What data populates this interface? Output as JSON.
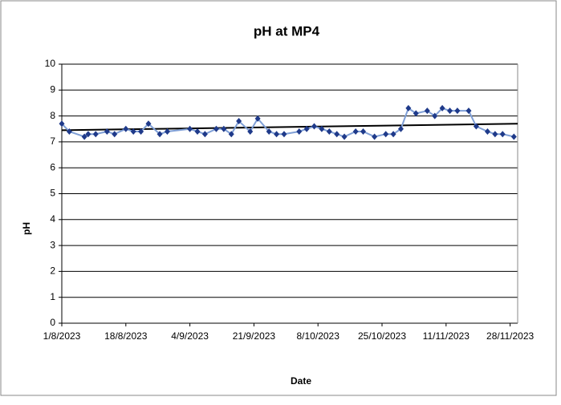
{
  "chart_data": {
    "type": "line",
    "title": "pH at MP4",
    "x_label": "Date",
    "y_label": "pH",
    "x": [
      "2023-08-01",
      "2023-08-03",
      "2023-08-07",
      "2023-08-08",
      "2023-08-10",
      "2023-08-13",
      "2023-08-15",
      "2023-08-18",
      "2023-08-20",
      "2023-08-22",
      "2023-08-24",
      "2023-08-27",
      "2023-08-29",
      "2023-09-04",
      "2023-09-06",
      "2023-09-08",
      "2023-09-11",
      "2023-09-13",
      "2023-09-15",
      "2023-09-17",
      "2023-09-20",
      "2023-09-22",
      "2023-09-25",
      "2023-09-27",
      "2023-09-29",
      "2023-10-03",
      "2023-10-05",
      "2023-10-07",
      "2023-10-09",
      "2023-10-11",
      "2023-10-13",
      "2023-10-15",
      "2023-10-18",
      "2023-10-20",
      "2023-10-23",
      "2023-10-26",
      "2023-10-28",
      "2023-10-30",
      "2023-11-01",
      "2023-11-03",
      "2023-11-06",
      "2023-11-08",
      "2023-11-10",
      "2023-11-12",
      "2023-11-14",
      "2023-11-17",
      "2023-11-19",
      "2023-11-22",
      "2023-11-24",
      "2023-11-26",
      "2023-11-29"
    ],
    "series": [
      {
        "color": "#7f9fd6",
        "marker_color": "#1f3a8a",
        "values": [
          7.7,
          7.4,
          7.2,
          7.3,
          7.3,
          7.4,
          7.3,
          7.5,
          7.4,
          7.4,
          7.7,
          7.3,
          7.4,
          7.5,
          7.4,
          7.3,
          7.5,
          7.5,
          7.3,
          7.8,
          7.4,
          7.9,
          7.4,
          7.3,
          7.3,
          7.4,
          7.5,
          7.6,
          7.5,
          7.4,
          7.3,
          7.2,
          7.4,
          7.4,
          7.2,
          7.3,
          7.3,
          7.5,
          8.3,
          8.1,
          8.2,
          8.0,
          8.3,
          8.2,
          8.2,
          8.2,
          7.6,
          7.4,
          7.3,
          7.3,
          7.2
        ]
      }
    ],
    "trendline": {
      "x": [
        "2023-08-01",
        "2023-11-30"
      ],
      "values": [
        7.45,
        7.7
      ],
      "color": "#000000"
    },
    "xlim": [
      "2023-08-01",
      "2023-11-30"
    ],
    "xticks": [
      {
        "value": "2023-08-01",
        "label": "1/8/2023"
      },
      {
        "value": "2023-08-18",
        "label": "18/8/2023"
      },
      {
        "value": "2023-09-04",
        "label": "4/9/2023"
      },
      {
        "value": "2023-09-21",
        "label": "21/9/2023"
      },
      {
        "value": "2023-10-08",
        "label": "8/10/2023"
      },
      {
        "value": "2023-10-25",
        "label": "25/10/2023"
      },
      {
        "value": "2023-11-11",
        "label": "11/11/2023"
      },
      {
        "value": "2023-11-28",
        "label": "28/11/2023"
      }
    ],
    "ylim": [
      0,
      10
    ],
    "yticks": [
      0,
      1,
      2,
      3,
      4,
      5,
      6,
      7,
      8,
      9,
      10
    ],
    "grid": true
  }
}
